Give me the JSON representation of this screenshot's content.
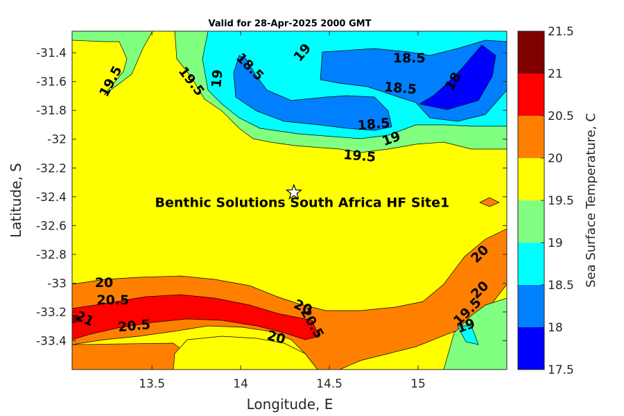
{
  "chart_data": {
    "type": "contour",
    "title": "Valid for 28-Apr-2025 2000 GMT",
    "xlabel": "Longitude, E",
    "ylabel": "Latitude, S",
    "xlim": [
      13.05,
      15.5
    ],
    "ylim": [
      -33.6,
      -31.25
    ],
    "xticks": [
      13.5,
      14,
      14.5,
      15
    ],
    "yticks": [
      -31.4,
      -31.6,
      -31.8,
      -32,
      -32.2,
      -32.4,
      -32.6,
      -32.8,
      -33,
      -33.2,
      -33.4
    ],
    "colorbar": {
      "label": "Sea Surface Temperature, C",
      "levels": [
        17.5,
        18,
        18.5,
        19,
        19.5,
        20,
        20.5,
        21,
        21.5
      ],
      "colors": [
        "#0000ff",
        "#0080ff",
        "#00ffff",
        "#80ff80",
        "#ffff00",
        "#ff8000",
        "#ff0000",
        "#800000"
      ]
    },
    "site": {
      "name": "Benthic Solutions South Africa HF Site1",
      "lon": 14.3,
      "lat": -32.37
    },
    "contour_labels": [
      {
        "text": "19.5",
        "lon": 13.27,
        "lat": -31.6,
        "angle": -62
      },
      {
        "text": "19.5",
        "lon": 13.72,
        "lat": -31.6,
        "angle": 52
      },
      {
        "text": "19",
        "lon": 13.87,
        "lat": -31.58,
        "angle": -85
      },
      {
        "text": "18.5",
        "lon": 14.05,
        "lat": -31.5,
        "angle": 45
      },
      {
        "text": "19",
        "lon": 14.35,
        "lat": -31.4,
        "angle": -50
      },
      {
        "text": "18.5",
        "lon": 14.95,
        "lat": -31.44,
        "angle": 0
      },
      {
        "text": "18.5",
        "lon": 14.9,
        "lat": -31.65,
        "angle": 5
      },
      {
        "text": "18",
        "lon": 15.2,
        "lat": -31.6,
        "angle": -60
      },
      {
        "text": "18.5",
        "lon": 14.75,
        "lat": -31.9,
        "angle": -5
      },
      {
        "text": "19",
        "lon": 14.85,
        "lat": -32.0,
        "angle": -20
      },
      {
        "text": "19.5",
        "lon": 14.67,
        "lat": -32.12,
        "angle": 5
      },
      {
        "text": "20",
        "lon": 15.35,
        "lat": -32.8,
        "angle": -45
      },
      {
        "text": "20",
        "lon": 15.35,
        "lat": -33.05,
        "angle": -45
      },
      {
        "text": "19.5",
        "lon": 15.28,
        "lat": -33.2,
        "angle": -45
      },
      {
        "text": "19",
        "lon": 15.27,
        "lat": -33.3,
        "angle": -20
      },
      {
        "text": "20",
        "lon": 13.23,
        "lat": -33.0,
        "angle": 0
      },
      {
        "text": "20.5",
        "lon": 13.28,
        "lat": -33.12,
        "angle": 0
      },
      {
        "text": "21",
        "lon": 13.12,
        "lat": -33.25,
        "angle": 25
      },
      {
        "text": "20.5",
        "lon": 13.4,
        "lat": -33.3,
        "angle": -5
      },
      {
        "text": "20",
        "lon": 14.35,
        "lat": -33.17,
        "angle": 25
      },
      {
        "text": "20.5",
        "lon": 14.4,
        "lat": -33.28,
        "angle": 60
      },
      {
        "text": "20",
        "lon": 14.2,
        "lat": -33.38,
        "angle": 15
      }
    ]
  }
}
